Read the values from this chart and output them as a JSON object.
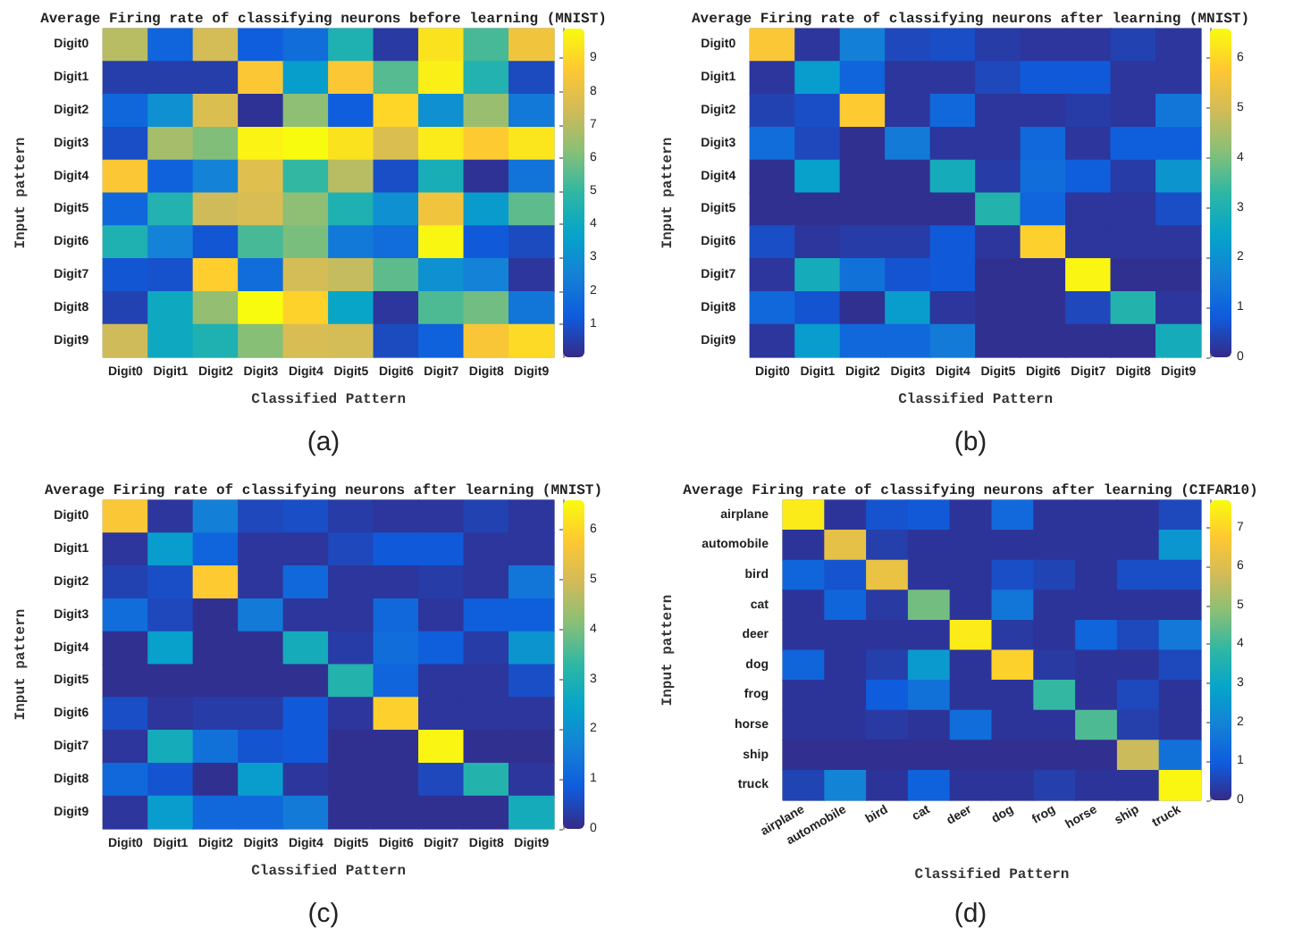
{
  "chart_data": [
    {
      "type": "heatmap",
      "title": "Average Firing rate of classifying neurons before learning (MNIST)",
      "xlabel": "Classified Pattern",
      "ylabel": "Input pattern",
      "categories": [
        "Digit0",
        "Digit1",
        "Digit2",
        "Digit3",
        "Digit4",
        "Digit5",
        "Digit6",
        "Digit7",
        "Digit8",
        "Digit9"
      ],
      "y_categories": [
        "Digit0",
        "Digit1",
        "Digit2",
        "Digit3",
        "Digit4",
        "Digit5",
        "Digit6",
        "Digit7",
        "Digit8",
        "Digit9"
      ],
      "cells": [
        [
          7,
          1.5,
          7.5,
          1.3,
          1.8,
          4.5,
          0.4,
          9.3,
          5.3,
          8.3
        ],
        [
          0.5,
          0.5,
          0.5,
          8.6,
          3.5,
          8.6,
          5.5,
          9.6,
          4.6,
          0.8
        ],
        [
          1.6,
          3,
          7.7,
          0.2,
          6.3,
          1.3,
          9,
          3,
          6.5,
          2.2
        ],
        [
          0.9,
          6.7,
          6.1,
          9.7,
          9.9,
          9.3,
          7.7,
          9.5,
          8.7,
          9.4
        ],
        [
          8.6,
          1.4,
          2.5,
          7.8,
          5,
          7,
          0.9,
          4.3,
          0.2,
          2
        ],
        [
          1.6,
          4.6,
          7.4,
          7.6,
          6.3,
          4.5,
          3,
          8.3,
          3.4,
          5.6
        ],
        [
          4.5,
          2.5,
          1.1,
          5.3,
          6,
          2.2,
          1.8,
          9.8,
          1.2,
          0.8
        ],
        [
          1.1,
          1,
          8.8,
          1.8,
          7.5,
          7.2,
          5.6,
          3,
          2.5,
          0.3
        ],
        [
          0.6,
          4,
          6.4,
          9.9,
          8.9,
          3.8,
          0.3,
          5.4,
          5.9,
          2.1
        ],
        [
          7.4,
          4,
          4.5,
          6.2,
          7.6,
          7.5,
          0.8,
          1.4,
          8.5,
          9.1
        ]
      ],
      "clim": [
        0,
        9.9
      ],
      "cticks": [
        1,
        2,
        3,
        4,
        5,
        6,
        7,
        8,
        9
      ],
      "annotations": [
        "(a)"
      ]
    },
    {
      "type": "heatmap",
      "title": "Average Firing rate of classifying neurons after learning (MNIST)",
      "xlabel": "Classified Pattern",
      "ylabel": "Input pattern",
      "categories": [
        "Digit0",
        "Digit1",
        "Digit2",
        "Digit3",
        "Digit4",
        "Digit5",
        "Digit6",
        "Digit7",
        "Digit8",
        "Digit9"
      ],
      "y_categories": [
        "Digit0",
        "Digit1",
        "Digit2",
        "Digit3",
        "Digit4",
        "Digit5",
        "Digit6",
        "Digit7",
        "Digit8",
        "Digit9"
      ],
      "cells": [
        [
          5.7,
          0.2,
          1.6,
          0.5,
          0.6,
          0.3,
          0.2,
          0.2,
          0.4,
          0.2
        ],
        [
          0.2,
          2.3,
          1,
          0.2,
          0.2,
          0.5,
          0.8,
          0.8,
          0.2,
          0.2
        ],
        [
          0.4,
          0.6,
          5.8,
          0.2,
          1.1,
          0.2,
          0.2,
          0.3,
          0.2,
          1.4
        ],
        [
          1.2,
          0.5,
          0.1,
          1.5,
          0.2,
          0.2,
          1.1,
          0.2,
          0.9,
          0.9
        ],
        [
          0.1,
          2.4,
          0.1,
          0.1,
          2.8,
          0.3,
          1.2,
          0.9,
          0.3,
          2.1
        ],
        [
          0.1,
          0.1,
          0.1,
          0.1,
          0.1,
          3.1,
          1,
          0.2,
          0.2,
          0.6
        ],
        [
          0.6,
          0.2,
          0.3,
          0.3,
          0.8,
          0.2,
          5.9,
          0.2,
          0.2,
          0.2
        ],
        [
          0.2,
          2.8,
          1.3,
          0.7,
          0.8,
          0.1,
          0.1,
          6.5,
          0.1,
          0.1
        ],
        [
          1.1,
          0.7,
          0.1,
          2.3,
          0.2,
          0.1,
          0.1,
          0.5,
          3.1,
          0.2
        ],
        [
          0.2,
          2.3,
          1.1,
          1.1,
          1.5,
          0.1,
          0.1,
          0.1,
          0.1,
          2.8
        ]
      ],
      "clim": [
        0,
        6.6
      ],
      "cticks": [
        0,
        1,
        2,
        3,
        4,
        5,
        6
      ],
      "annotations": [
        "(b)"
      ]
    },
    {
      "type": "heatmap",
      "title": "Average Firing rate of classifying neurons after learning (MNIST)",
      "xlabel": "Classified Pattern",
      "ylabel": "Input pattern",
      "categories": [
        "Digit0",
        "Digit1",
        "Digit2",
        "Digit3",
        "Digit4",
        "Digit5",
        "Digit6",
        "Digit7",
        "Digit8",
        "Digit9"
      ],
      "y_categories": [
        "Digit0",
        "Digit1",
        "Digit2",
        "Digit3",
        "Digit4",
        "Digit5",
        "Digit6",
        "Digit7",
        "Digit8",
        "Digit9"
      ],
      "cells": [
        [
          5.7,
          0.2,
          1.6,
          0.5,
          0.6,
          0.3,
          0.2,
          0.2,
          0.4,
          0.2
        ],
        [
          0.2,
          2.3,
          1,
          0.2,
          0.2,
          0.5,
          0.8,
          0.8,
          0.2,
          0.2
        ],
        [
          0.4,
          0.6,
          5.8,
          0.2,
          1.1,
          0.2,
          0.2,
          0.3,
          0.2,
          1.4
        ],
        [
          1.2,
          0.5,
          0.1,
          1.5,
          0.2,
          0.2,
          1.1,
          0.2,
          0.9,
          0.9
        ],
        [
          0.1,
          2.4,
          0.1,
          0.1,
          2.8,
          0.3,
          1.2,
          0.9,
          0.3,
          2.1
        ],
        [
          0.1,
          0.1,
          0.1,
          0.1,
          0.1,
          3.1,
          1,
          0.2,
          0.2,
          0.6
        ],
        [
          0.6,
          0.2,
          0.3,
          0.3,
          0.8,
          0.2,
          5.9,
          0.2,
          0.2,
          0.2
        ],
        [
          0.2,
          2.8,
          1.3,
          0.7,
          0.8,
          0.1,
          0.1,
          6.5,
          0.1,
          0.1
        ],
        [
          1.1,
          0.7,
          0.1,
          2.3,
          0.2,
          0.1,
          0.1,
          0.5,
          3.1,
          0.2
        ],
        [
          0.2,
          2.3,
          1.1,
          1.1,
          1.5,
          0.1,
          0.1,
          0.1,
          0.1,
          2.8
        ]
      ],
      "clim": [
        0,
        6.6
      ],
      "cticks": [
        0,
        1,
        2,
        3,
        4,
        5,
        6
      ],
      "annotations": [
        "(c)"
      ]
    },
    {
      "type": "heatmap",
      "title": "Average Firing rate of classifying neurons after learning (CIFAR10)",
      "xlabel": "Classified Pattern",
      "ylabel": "Input pattern",
      "categories": [
        "airplane",
        "automobile",
        "bird",
        "cat",
        "deer",
        "dog",
        "frog",
        "horse",
        "ship",
        "truck"
      ],
      "y_categories": [
        "airplane",
        "automobile",
        "bird",
        "cat",
        "deer",
        "dog",
        "frog",
        "horse",
        "ship",
        "truck"
      ],
      "cells": [
        [
          7.4,
          0.2,
          0.8,
          0.9,
          0.2,
          1.3,
          0.2,
          0.2,
          0.2,
          0.6
        ],
        [
          0.2,
          6.2,
          0.4,
          0.2,
          0.2,
          0.2,
          0.2,
          0.2,
          0.2,
          2.5
        ],
        [
          1.2,
          0.8,
          6.3,
          0.2,
          0.2,
          0.7,
          0.5,
          0.2,
          0.7,
          0.7
        ],
        [
          0.2,
          1.2,
          0.3,
          4.6,
          0.2,
          1.6,
          0.2,
          0.2,
          0.2,
          0.2
        ],
        [
          0.2,
          0.2,
          0.2,
          0.2,
          7.4,
          0.3,
          0.2,
          1.2,
          0.6,
          1.7
        ],
        [
          1.2,
          0.2,
          0.4,
          2.6,
          0.2,
          6.9,
          0.3,
          0.2,
          0.2,
          0.6
        ],
        [
          0.2,
          0.2,
          1,
          1.5,
          0.2,
          0.2,
          3.9,
          0.2,
          0.6,
          0.2
        ],
        [
          0.2,
          0.2,
          0.3,
          0.2,
          1.4,
          0.2,
          0.2,
          4.2,
          0.4,
          0.2
        ],
        [
          0.1,
          0.1,
          0.1,
          0.1,
          0.1,
          0.1,
          0.1,
          0.1,
          5.7,
          1.5
        ],
        [
          0.5,
          2,
          0.2,
          1.1,
          0.2,
          0.2,
          0.4,
          0.2,
          0.2,
          7.6
        ]
      ],
      "clim": [
        0,
        7.7
      ],
      "cticks": [
        0,
        1,
        2,
        3,
        4,
        5,
        6,
        7
      ],
      "annotations": [
        "(d)"
      ]
    }
  ]
}
